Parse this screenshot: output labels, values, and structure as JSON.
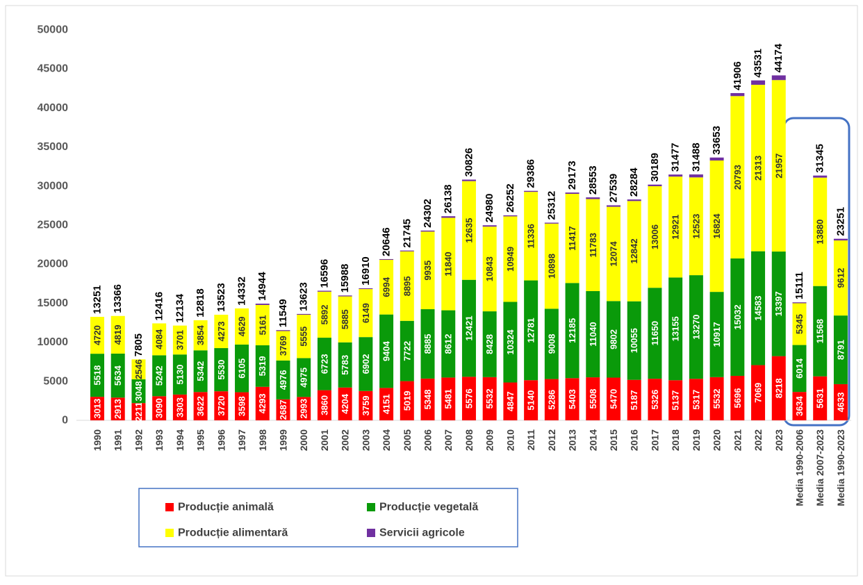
{
  "chart_data": {
    "type": "stacked_bar",
    "categories": [
      "1990",
      "1991",
      "1992",
      "1993",
      "1994",
      "1995",
      "1996",
      "1997",
      "1998",
      "1999",
      "2000",
      "2001",
      "2002",
      "2003",
      "2004",
      "2005",
      "2006",
      "2007",
      "2008",
      "2009",
      "2010",
      "2011",
      "2012",
      "2013",
      "2014",
      "2015",
      "2016",
      "2017",
      "2018",
      "2019",
      "2020",
      "2021",
      "2022",
      "2023",
      "Media 1990-2006",
      "Media 2007-2023",
      "Media 1990-2023"
    ],
    "series": [
      {
        "name": "Producție animală",
        "color": "#ff0000",
        "values": [
          3013,
          2913,
          2211,
          3090,
          3303,
          3622,
          3720,
          3598,
          4293,
          2687,
          2993,
          3860,
          4204,
          3759,
          4151,
          5019,
          5348,
          5481,
          5576,
          5532,
          4847,
          5140,
          5286,
          5403,
          5508,
          5470,
          5187,
          5326,
          5137,
          5317,
          5532,
          5696,
          7069,
          8218,
          3634,
          5631,
          4633
        ]
      },
      {
        "name": "Producție vegetală",
        "color": "#0a9a0a",
        "values": [
          5518,
          5634,
          3048,
          5242,
          5130,
          5342,
          5530,
          6105,
          5319,
          4976,
          4975,
          6723,
          5783,
          6902,
          9404,
          7722,
          8885,
          8612,
          12421,
          8428,
          10324,
          12781,
          9008,
          12185,
          11040,
          9802,
          10055,
          11650,
          13155,
          13270,
          10917,
          15032,
          14583,
          13397,
          6014,
          11568,
          8791
        ]
      },
      {
        "name": "Producție alimentară",
        "color": "#ffff00",
        "values": [
          4720,
          4819,
          2546,
          4084,
          3701,
          3854,
          4273,
          4629,
          5161,
          3769,
          5555,
          5892,
          5885,
          6149,
          6994,
          8895,
          9935,
          11840,
          12635,
          10843,
          10949,
          11336,
          10898,
          11417,
          11783,
          12074,
          12842,
          13006,
          12921,
          12523,
          16824,
          20793,
          21313,
          21957,
          5345,
          13880,
          9612
        ]
      },
      {
        "name": "Servicii agricole",
        "color": "#7030a0",
        "values": [
          0,
          0,
          0,
          0,
          0,
          0,
          0,
          0,
          171,
          117,
          100,
          121,
          116,
          100,
          97,
          109,
          134,
          205,
          194,
          177,
          132,
          129,
          120,
          168,
          222,
          193,
          200,
          207,
          264,
          378,
          380,
          385,
          566,
          602,
          118,
          266,
          215
        ]
      }
    ],
    "totals": [
      13251,
      13366,
      7805,
      12416,
      12134,
      12818,
      13523,
      14332,
      14944,
      11549,
      13623,
      16596,
      15988,
      16910,
      20646,
      21745,
      24302,
      26138,
      30826,
      24980,
      26252,
      29386,
      25312,
      29173,
      28553,
      27539,
      28284,
      30189,
      31477,
      31488,
      33653,
      41906,
      43531,
      44174,
      15111,
      31345,
      23251
    ],
    "ylim": [
      0,
      50000
    ],
    "yticks": [
      0,
      5000,
      10000,
      15000,
      20000,
      25000,
      30000,
      35000,
      40000,
      45000,
      50000
    ],
    "grid": false
  }
}
